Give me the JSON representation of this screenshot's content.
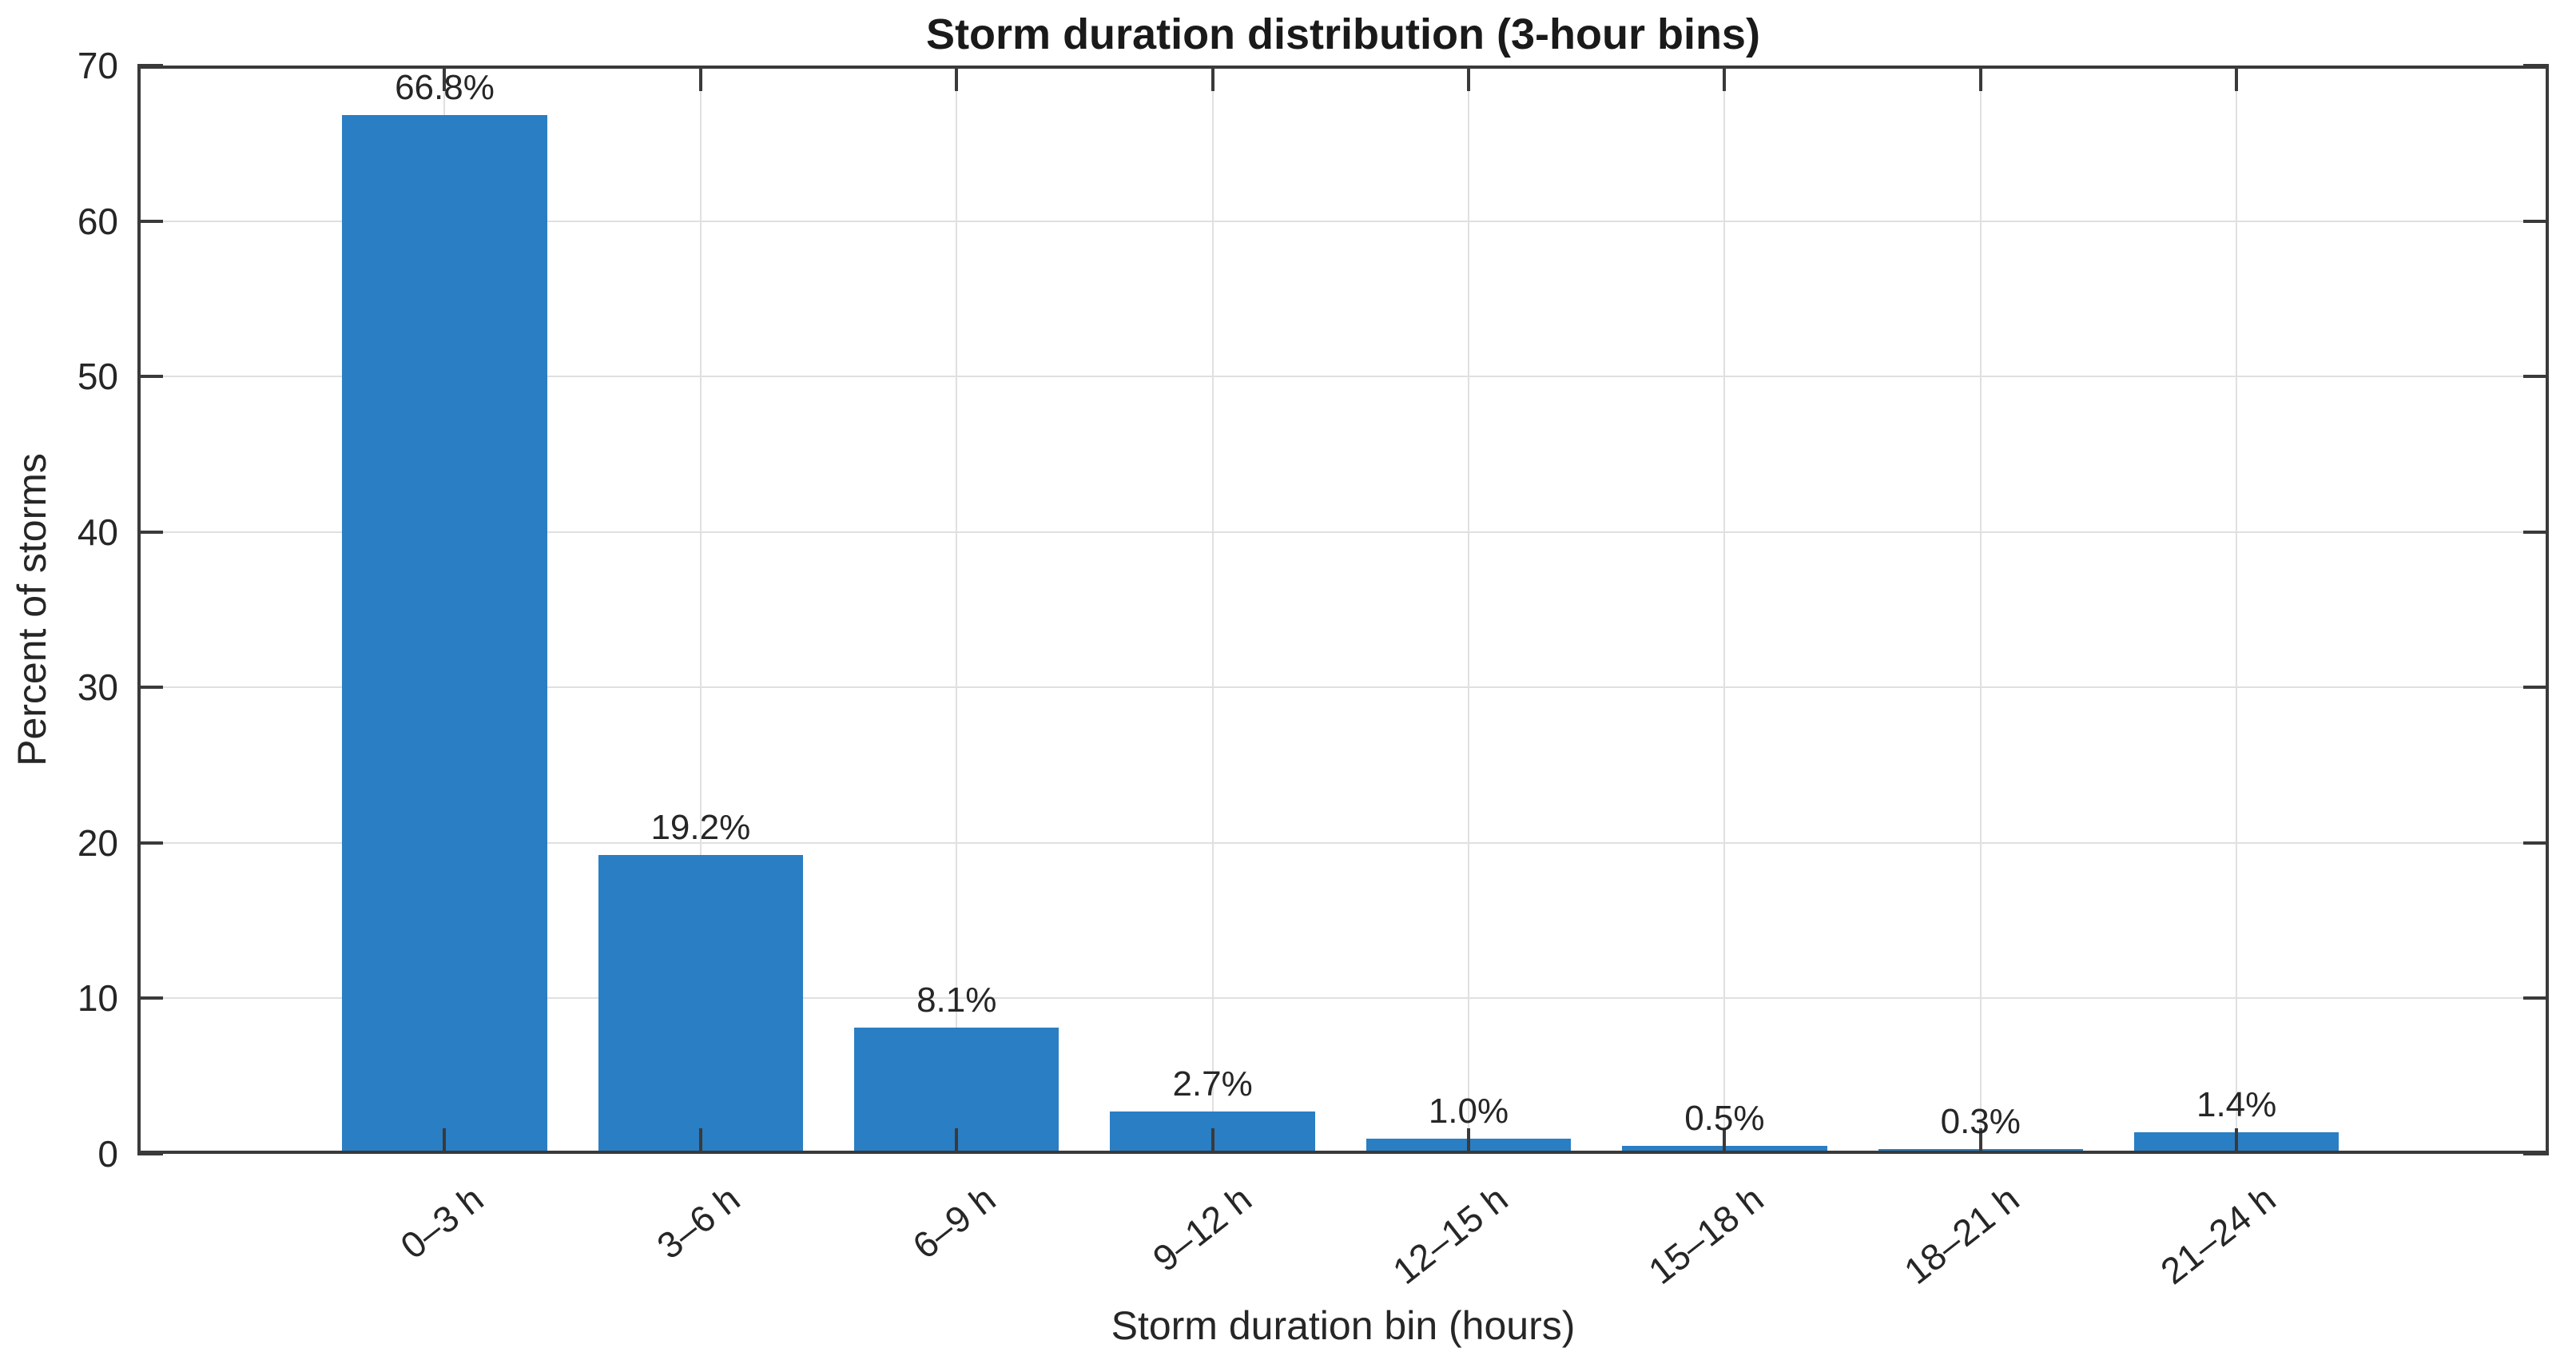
{
  "chart_data": {
    "type": "bar",
    "title": "Storm duration distribution (3-hour bins)",
    "xlabel": "Storm duration bin (hours)",
    "ylabel": "Percent of storms",
    "categories": [
      "0–3 h",
      "3–6 h",
      "6–9 h",
      "9–12 h",
      "12–15 h",
      "15–18 h",
      "18–21 h",
      "21–24 h"
    ],
    "values": [
      66.8,
      19.2,
      8.1,
      2.7,
      1.0,
      0.5,
      0.3,
      1.4
    ],
    "bar_labels": [
      "66.8%",
      "19.2%",
      "8.1%",
      "2.7%",
      "1.0%",
      "0.5%",
      "0.3%",
      "1.4%"
    ],
    "yticks": [
      0,
      10,
      20,
      30,
      40,
      50,
      60,
      70
    ],
    "ytick_labels": [
      "0",
      "10",
      "20",
      "30",
      "40",
      "50",
      "60",
      "70"
    ],
    "ylim": [
      0,
      70
    ],
    "xlim": [
      -1.2,
      8.22
    ],
    "bar_width": 0.8,
    "grid": true,
    "x_tick_rotation_deg": 38,
    "legend": null,
    "colors": {
      "bar": "#2A7EC3",
      "grid": "#E0E0E0",
      "axis": "#3A3A3A",
      "text": "#262626",
      "title": "#1A1A1A",
      "background": "#FFFFFF"
    }
  }
}
